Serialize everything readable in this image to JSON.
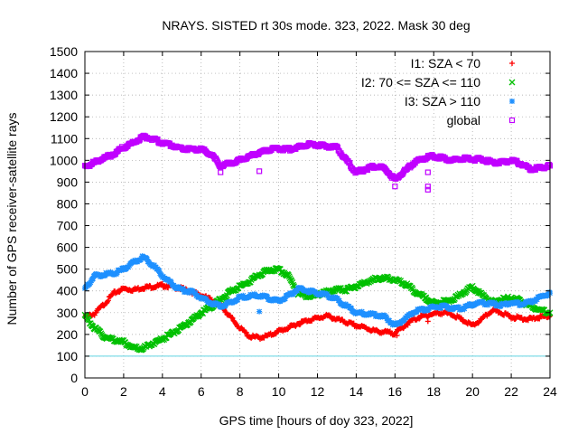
{
  "chart_data": {
    "type": "scatter",
    "title": "NRAYS. SISTED rt 30s mode. 323, 2022. Mask 30 deg",
    "xlabel": "GPS time [hours of doy 323, 2022]",
    "ylabel": "Number of GPS receiver-satellite rays",
    "xlim": [
      0,
      24
    ],
    "ylim": [
      0,
      1500
    ],
    "x_ticks": [
      0,
      2,
      4,
      6,
      8,
      10,
      12,
      14,
      16,
      18,
      20,
      22,
      24
    ],
    "y_ticks": [
      0,
      100,
      200,
      300,
      400,
      500,
      600,
      700,
      800,
      900,
      1000,
      1100,
      1200,
      1300,
      1400,
      1500
    ],
    "grid": true,
    "legend_position": "top-right",
    "reference_line": {
      "y": 100,
      "color": "#5fd3e0"
    },
    "series": [
      {
        "name": "I1: SZA < 70",
        "marker": "+",
        "color": "#ff0000",
        "x": [
          0,
          0.5,
          1,
          1.5,
          2,
          2.5,
          3,
          3.5,
          4,
          4.5,
          5,
          5.5,
          6,
          6.5,
          7,
          7.5,
          8,
          8.5,
          9,
          9.5,
          10,
          10.5,
          11,
          11.5,
          12,
          12.5,
          13,
          13.5,
          14,
          14.5,
          15,
          15.5,
          16,
          16.5,
          17,
          17.5,
          18,
          18.5,
          19,
          19.5,
          20,
          20.5,
          21,
          21.5,
          22,
          22.5,
          23,
          23.5,
          24
        ],
        "values": [
          280,
          295,
          340,
          390,
          410,
          405,
          415,
          420,
          425,
          420,
          410,
          395,
          380,
          360,
          335,
          280,
          230,
          190,
          185,
          195,
          215,
          230,
          250,
          265,
          275,
          285,
          270,
          255,
          240,
          230,
          215,
          210,
          205,
          240,
          270,
          285,
          295,
          300,
          290,
          265,
          240,
          270,
          310,
          300,
          280,
          275,
          270,
          280,
          285
        ]
      },
      {
        "name": "I2: 70 <= SZA <= 110",
        "marker": "x",
        "color": "#00c000",
        "x": [
          0,
          0.5,
          1,
          1.5,
          2,
          2.5,
          3,
          3.5,
          4,
          4.5,
          5,
          5.5,
          6,
          6.5,
          7,
          7.5,
          8,
          8.5,
          9,
          9.5,
          10,
          10.5,
          11,
          11.5,
          12,
          12.5,
          13,
          13.5,
          14,
          14.5,
          15,
          15.5,
          16,
          16.5,
          17,
          17.5,
          18,
          18.5,
          19,
          19.5,
          20,
          20.5,
          21,
          21.5,
          22,
          22.5,
          23,
          23.5,
          24
        ],
        "values": [
          285,
          230,
          190,
          175,
          165,
          140,
          135,
          160,
          180,
          205,
          230,
          265,
          300,
          325,
          360,
          395,
          420,
          445,
          475,
          495,
          500,
          470,
          390,
          375,
          385,
          395,
          405,
          405,
          420,
          440,
          455,
          460,
          450,
          435,
          400,
          370,
          345,
          350,
          360,
          390,
          420,
          380,
          350,
          360,
          370,
          355,
          330,
          310,
          300
        ]
      },
      {
        "name": "I3: SZA > 110",
        "marker": "*",
        "color": "#1e90ff",
        "x": [
          0,
          0.5,
          1,
          1.5,
          2,
          2.5,
          3,
          3.5,
          4,
          4.5,
          5,
          5.5,
          6,
          6.5,
          7,
          7.5,
          8,
          8.5,
          9,
          9.5,
          10,
          10.5,
          11,
          11.5,
          12,
          12.5,
          13,
          13.5,
          14,
          14.5,
          15,
          15.5,
          16,
          16.5,
          17,
          17.5,
          18,
          18.5,
          19,
          19.5,
          20,
          20.5,
          21,
          21.5,
          22,
          22.5,
          23,
          23.5,
          24
        ],
        "values": [
          410,
          470,
          475,
          480,
          500,
          530,
          555,
          520,
          470,
          430,
          405,
          395,
          370,
          345,
          330,
          345,
          370,
          375,
          380,
          365,
          355,
          375,
          410,
          400,
          390,
          380,
          360,
          330,
          300,
          295,
          290,
          280,
          240,
          270,
          305,
          315,
          325,
          330,
          320,
          320,
          340,
          345,
          340,
          335,
          345,
          340,
          350,
          370,
          390
        ]
      },
      {
        "name": "global",
        "marker": "square",
        "color": "#c000ff",
        "x": [
          0,
          0.5,
          1,
          1.5,
          2,
          2.5,
          3,
          3.5,
          4,
          4.5,
          5,
          5.5,
          6,
          6.5,
          7,
          7.5,
          8,
          8.5,
          9,
          9.5,
          10,
          10.5,
          11,
          11.5,
          12,
          12.5,
          13,
          13.5,
          14,
          14.5,
          15,
          15.5,
          16,
          16.5,
          17,
          17.5,
          18,
          18.5,
          19,
          19.5,
          20,
          20.5,
          21,
          21.5,
          22,
          22.5,
          23,
          23.5,
          24
        ],
        "values": [
          970,
          990,
          1010,
          1030,
          1060,
          1080,
          1110,
          1100,
          1080,
          1070,
          1055,
          1050,
          1050,
          1030,
          975,
          985,
          1000,
          1020,
          1035,
          1050,
          1055,
          1050,
          1060,
          1075,
          1070,
          1065,
          1060,
          1000,
          945,
          960,
          975,
          960,
          910,
          950,
          990,
          1010,
          1020,
          1010,
          1000,
          1010,
          1005,
          1005,
          990,
          990,
          1000,
          985,
          960,
          965,
          975
        ]
      }
    ],
    "outliers": {
      "global": [
        {
          "x": 7.0,
          "y": 945
        },
        {
          "x": 9.0,
          "y": 950
        },
        {
          "x": 16.0,
          "y": 880
        },
        {
          "x": 17.7,
          "y": 945
        },
        {
          "x": 17.7,
          "y": 880
        },
        {
          "x": 17.7,
          "y": 865
        }
      ],
      "I3: SZA > 110": [
        {
          "x": 9.0,
          "y": 305
        }
      ],
      "I2: 70 <= SZA <= 110": [
        {
          "x": 17.6,
          "y": 370
        }
      ],
      "I1: SZA < 70": [
        {
          "x": 17.7,
          "y": 260
        },
        {
          "x": 16.1,
          "y": 195
        }
      ]
    }
  }
}
